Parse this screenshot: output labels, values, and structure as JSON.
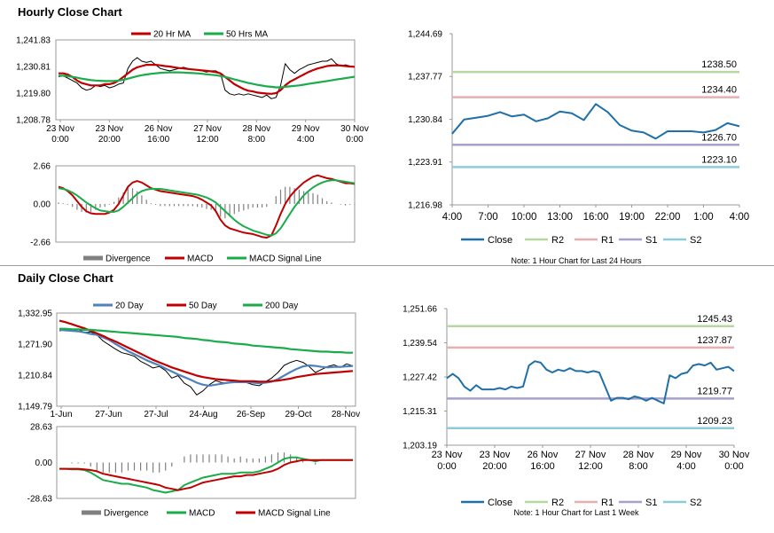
{
  "sections": {
    "hourly_title": "Hourly Close Chart",
    "daily_title": "Daily Close Chart"
  },
  "colors": {
    "ma20": "#c00000",
    "ma50": "#1aab4a",
    "ma200": "#1aab4a",
    "ma20d": "#4f81bd",
    "macd_hourly": "#c00000",
    "signal_hourly": "#1aab4a",
    "macd_daily": "#1aab4a",
    "signal_daily": "#c00000",
    "divergence": "#808080",
    "close": "#1f6fa8",
    "r2": "#b7d7a0",
    "r1": "#e6b0b0",
    "s1": "#a8a0c8",
    "s2": "#8ccbd8",
    "price": "#000000"
  },
  "chart_data": [
    {
      "id": "hourly_price",
      "type": "line",
      "legend": [
        "20 Hr MA",
        "50 Hrs MA"
      ],
      "yticks": [
        "1,241.83",
        "1,230.81",
        "1,219.80",
        "1,208.78"
      ],
      "ylim": [
        1208.78,
        1241.83
      ],
      "xticks": [
        [
          "23 Nov",
          "0:00"
        ],
        [
          "23 Nov",
          "20:00"
        ],
        [
          "26 Nov",
          "16:00"
        ],
        [
          "27 Nov",
          "12:00"
        ],
        [
          "28 Nov",
          "8:00"
        ],
        [
          "29 Nov",
          "4:00"
        ],
        [
          "30 Nov",
          "0:00"
        ]
      ],
      "series": [
        {
          "name": "Close",
          "values": [
            1226.5,
            1227,
            1226,
            1225,
            1224,
            1222,
            1221,
            1221.5,
            1223,
            1222.5,
            1223,
            1222,
            1222.5,
            1223.5,
            1224,
            1230,
            1233,
            1234.5,
            1233,
            1232.5,
            1233,
            1231.5,
            1230,
            1229.5,
            1229,
            1229.5,
            1230,
            1230.5,
            1230,
            1229.5,
            1229.5,
            1229,
            1228.5,
            1229,
            1229,
            1228,
            1221,
            1219.5,
            1219,
            1219.5,
            1219,
            1219.5,
            1219,
            1218.5,
            1218,
            1219,
            1217.5,
            1218,
            1223,
            1232,
            1229.5,
            1228,
            1229.5,
            1230.5,
            1231.5,
            1232,
            1232.5,
            1233,
            1233,
            1234,
            1232,
            1231,
            1231.5,
            1231,
            1230.5
          ]
        },
        {
          "name": "20 Hr MA",
          "values": [
            1228,
            1228,
            1227.5,
            1226.5,
            1225,
            1224,
            1223.5,
            1223,
            1223,
            1223,
            1223.5,
            1223.5,
            1224,
            1225,
            1226.5,
            1228,
            1229.5,
            1230.5,
            1231,
            1231.5,
            1231.5,
            1231.5,
            1231.3,
            1231,
            1230.8,
            1230.5,
            1230.2,
            1230,
            1229.8,
            1229.6,
            1229.4,
            1229.2,
            1229,
            1228.8,
            1228.5,
            1228,
            1226.5,
            1225,
            1223.5,
            1222.5,
            1221.5,
            1220.8,
            1220.5,
            1220,
            1219.8,
            1219.6,
            1219.5,
            1219.8,
            1221,
            1223,
            1224.5,
            1225.5,
            1226.5,
            1227.5,
            1228.5,
            1229.3,
            1230,
            1230.5,
            1231,
            1231.2,
            1231.3,
            1231.2,
            1231,
            1230.8,
            1230.7
          ]
        },
        {
          "name": "50 Hrs MA",
          "values": [
            1227,
            1227,
            1226.8,
            1226.5,
            1226.2,
            1225.8,
            1225.5,
            1225.2,
            1225,
            1224.9,
            1224.8,
            1224.8,
            1224.8,
            1225,
            1225.3,
            1225.8,
            1226.3,
            1226.8,
            1227.2,
            1227.5,
            1227.8,
            1228,
            1228.2,
            1228.3,
            1228.4,
            1228.4,
            1228.4,
            1228.3,
            1228.2,
            1228.1,
            1228,
            1227.8,
            1227.6,
            1227.4,
            1227.2,
            1226.9,
            1226.5,
            1226,
            1225.5,
            1225,
            1224.5,
            1224,
            1223.6,
            1223.2,
            1222.9,
            1222.6,
            1222.4,
            1222.2,
            1222.2,
            1222.4,
            1222.6,
            1222.8,
            1223,
            1223.3,
            1223.6,
            1223.9,
            1224.2,
            1224.5,
            1224.8,
            1225.1,
            1225.4,
            1225.7,
            1226,
            1226.3,
            1226.6
          ]
        }
      ]
    },
    {
      "id": "hourly_macd",
      "type": "line",
      "legend": [
        "Divergence",
        "MACD",
        "MACD Signal Line"
      ],
      "yticks": [
        "2.66",
        "0.00",
        "-2.66"
      ],
      "ylim": [
        -2.66,
        2.66
      ],
      "series": [
        {
          "name": "MACD",
          "values": [
            1.2,
            1.1,
            0.9,
            0.6,
            0.2,
            -0.2,
            -0.5,
            -0.65,
            -0.7,
            -0.7,
            -0.7,
            -0.6,
            -0.4,
            0,
            0.6,
            1.2,
            1.5,
            1.6,
            1.5,
            1.3,
            1.1,
            1,
            0.9,
            0.85,
            0.8,
            0.75,
            0.7,
            0.65,
            0.6,
            0.55,
            0.45,
            0.3,
            0.1,
            -0.1,
            -0.5,
            -1.1,
            -1.5,
            -1.7,
            -1.8,
            -1.9,
            -2,
            -2.05,
            -2.1,
            -2.2,
            -2.3,
            -2.35,
            -2.2,
            -1.5,
            -0.7,
            0,
            0.5,
            0.9,
            1.2,
            1.5,
            1.7,
            1.9,
            2,
            1.9,
            1.8,
            1.75,
            1.65,
            1.55,
            1.45,
            1.45,
            1.4
          ]
        },
        {
          "name": "MACD Signal Line",
          "values": [
            1.1,
            1.05,
            0.95,
            0.8,
            0.6,
            0.35,
            0.1,
            -0.1,
            -0.3,
            -0.45,
            -0.5,
            -0.55,
            -0.55,
            -0.45,
            -0.2,
            0.1,
            0.4,
            0.7,
            0.9,
            1,
            1.05,
            1.05,
            1.05,
            1,
            0.95,
            0.9,
            0.85,
            0.8,
            0.75,
            0.7,
            0.65,
            0.55,
            0.45,
            0.3,
            0.1,
            -0.2,
            -0.5,
            -0.8,
            -1.1,
            -1.35,
            -1.55,
            -1.7,
            -1.85,
            -1.95,
            -2.05,
            -2.15,
            -2.2,
            -2.05,
            -1.7,
            -1.2,
            -0.7,
            -0.2,
            0.2,
            0.6,
            0.9,
            1.15,
            1.35,
            1.5,
            1.6,
            1.65,
            1.65,
            1.6,
            1.55,
            1.5,
            1.45
          ]
        }
      ]
    },
    {
      "id": "hourly_pivot",
      "type": "line",
      "legend": [
        "Close",
        "R2",
        "R1",
        "S1",
        "S2"
      ],
      "note": "Note: 1 Hour Chart for Last 24 Hours",
      "yticks": [
        "1,244.69",
        "1,237.77",
        "1,230.84",
        "1,223.91",
        "1,216.98"
      ],
      "ylim": [
        1216.98,
        1244.69
      ],
      "xticks": [
        "4:00",
        "7:00",
        "10:00",
        "13:00",
        "16:00",
        "19:00",
        "22:00",
        "1:00",
        "4:00"
      ],
      "levels": {
        "R2": 1238.5,
        "R1": 1234.4,
        "S1": 1226.7,
        "S2": 1223.1
      },
      "level_labels": {
        "R2": "1238.50",
        "R1": "1234.40",
        "S1": "1226.70",
        "S2": "1223.10"
      },
      "series": [
        {
          "name": "Close",
          "values": [
            1228.5,
            1230.8,
            1231.1,
            1231.4,
            1232.0,
            1231.3,
            1231.6,
            1230.5,
            1231.0,
            1232.1,
            1231.8,
            1230.7,
            1233.3,
            1232.0,
            1229.9,
            1229.0,
            1228.7,
            1227.7,
            1228.9,
            1228.9,
            1228.9,
            1228.7,
            1229.1,
            1230.2,
            1229.7
          ]
        }
      ]
    },
    {
      "id": "daily_price",
      "type": "line",
      "legend": [
        "20 Day",
        "50 Day",
        "200 Day"
      ],
      "yticks": [
        "1,332.95",
        "1,271.90",
        "1,210.84",
        "1,149.79"
      ],
      "ylim": [
        1149.79,
        1332.95
      ],
      "xticks": [
        "1-Jun",
        "27-Jun",
        "27-Jul",
        "24-Aug",
        "26-Sep",
        "29-Oct",
        "28-Nov"
      ],
      "series": [
        {
          "name": "Close",
          "values": [
            1298,
            1300,
            1297,
            1301,
            1295,
            1296,
            1290,
            1278,
            1270,
            1262,
            1255,
            1252,
            1248,
            1238,
            1232,
            1225,
            1228,
            1220,
            1205,
            1210,
            1195,
            1188,
            1172,
            1180,
            1192,
            1200,
            1196,
            1195,
            1200,
            1197,
            1196,
            1192,
            1190,
            1198,
            1205,
            1216,
            1230,
            1236,
            1240,
            1236,
            1228,
            1216,
            1222,
            1228,
            1231,
            1226,
            1233,
            1229
          ]
        },
        {
          "name": "20 Day",
          "values": [
            1300,
            1299,
            1298,
            1297,
            1295,
            1292,
            1290,
            1285,
            1280,
            1272,
            1265,
            1258,
            1252,
            1246,
            1240,
            1235,
            1230,
            1224,
            1218,
            1212,
            1207,
            1202,
            1196,
            1192,
            1190,
            1192,
            1194,
            1196,
            1197,
            1197,
            1197,
            1196,
            1195,
            1196,
            1198,
            1203,
            1210,
            1217,
            1223,
            1228,
            1230,
            1229,
            1227,
            1226,
            1227,
            1227,
            1228,
            1229
          ]
        },
        {
          "name": "50 Day",
          "values": [
            1318,
            1315,
            1311,
            1307,
            1303,
            1298,
            1293,
            1288,
            1282,
            1277,
            1271,
            1265,
            1259,
            1253,
            1247,
            1241,
            1236,
            1231,
            1226,
            1222,
            1218,
            1214,
            1210,
            1207,
            1205,
            1203,
            1202,
            1201,
            1200,
            1199,
            1199,
            1199,
            1198,
            1198,
            1199,
            1200,
            1202,
            1204,
            1207,
            1209,
            1211,
            1213,
            1214,
            1215,
            1216,
            1217,
            1218,
            1219
          ]
        },
        {
          "name": "200 Day",
          "values": [
            1302,
            1302,
            1301,
            1301,
            1300,
            1300,
            1299,
            1298,
            1297,
            1296,
            1295,
            1294,
            1293,
            1292,
            1291,
            1290,
            1289,
            1288,
            1287,
            1286,
            1284,
            1283,
            1282,
            1280,
            1279,
            1277,
            1276,
            1275,
            1273,
            1272,
            1271,
            1269,
            1268,
            1267,
            1266,
            1265,
            1264,
            1262,
            1261,
            1260,
            1259,
            1258,
            1257,
            1257,
            1256,
            1256,
            1255,
            1255
          ]
        }
      ]
    },
    {
      "id": "daily_macd",
      "type": "line",
      "legend": [
        "Divergence",
        "MACD",
        "MACD Signal Line"
      ],
      "yticks": [
        "28.63",
        "0.00",
        "-28.63"
      ],
      "ylim": [
        -28.63,
        28.63
      ],
      "series": [
        {
          "name": "MACD",
          "values": [
            -5,
            -5,
            -5.5,
            -5.5,
            -6,
            -8,
            -11,
            -14,
            -15,
            -16,
            -17,
            -17,
            -18,
            -19,
            -20,
            -22,
            -23,
            -24,
            -23,
            -22,
            -18,
            -16,
            -14,
            -12,
            -11,
            -10,
            -9,
            -9,
            -9,
            -8,
            -8,
            -8,
            -7,
            -5,
            -3,
            0,
            3,
            4,
            4,
            3,
            2,
            1,
            2,
            2,
            2,
            2,
            2,
            2
          ]
        },
        {
          "name": "MACD Signal Line",
          "values": [
            -5,
            -5,
            -5,
            -5,
            -5.5,
            -6,
            -7,
            -9,
            -10,
            -11,
            -12,
            -13,
            -14,
            -15,
            -16,
            -17,
            -18,
            -20,
            -21,
            -22,
            -21,
            -20,
            -18,
            -16,
            -15,
            -14,
            -13,
            -12,
            -11,
            -11,
            -10,
            -10,
            -9,
            -8,
            -7,
            -5,
            -2,
            0,
            1,
            2,
            2,
            2,
            2,
            2,
            2,
            2,
            2,
            2
          ]
        }
      ]
    },
    {
      "id": "daily_pivot",
      "type": "line",
      "legend": [
        "Close",
        "R2",
        "R1",
        "S1",
        "S2"
      ],
      "note": "Note: 1 Hour Chart for Last 1 Week",
      "yticks": [
        "1,251.66",
        "1,239.54",
        "1,227.42",
        "1,215.31",
        "1,203.19"
      ],
      "ylim": [
        1203.19,
        1251.66
      ],
      "xticks": [
        [
          "23 Nov",
          "0:00"
        ],
        [
          "23 Nov",
          "20:00"
        ],
        [
          "26 Nov",
          "16:00"
        ],
        [
          "27 Nov",
          "12:00"
        ],
        [
          "28 Nov",
          "8:00"
        ],
        [
          "29 Nov",
          "4:00"
        ],
        [
          "30 Nov",
          "0:00"
        ]
      ],
      "levels": {
        "R2": 1245.43,
        "R1": 1237.87,
        "S1": 1219.77,
        "S2": 1209.23
      },
      "level_labels": {
        "R2": "1245.43",
        "R1": "1237.87",
        "S1": "1219.77",
        "S2": "1209.23"
      },
      "series": [
        {
          "name": "Close",
          "values": [
            1227,
            1228.5,
            1227,
            1224,
            1222.5,
            1224.5,
            1223,
            1223,
            1223,
            1223.5,
            1223,
            1224,
            1223.5,
            1224,
            1231.5,
            1233,
            1232.5,
            1230,
            1229,
            1230,
            1229.5,
            1230.5,
            1229.5,
            1229.5,
            1229,
            1229.5,
            1229,
            1224,
            1219,
            1220,
            1220,
            1219.5,
            1220.5,
            1220,
            1219,
            1220,
            1219,
            1218,
            1228,
            1227,
            1228.5,
            1229,
            1231.5,
            1232,
            1231.5,
            1232.5,
            1230,
            1230.5,
            1231,
            1229.5
          ]
        }
      ]
    }
  ]
}
